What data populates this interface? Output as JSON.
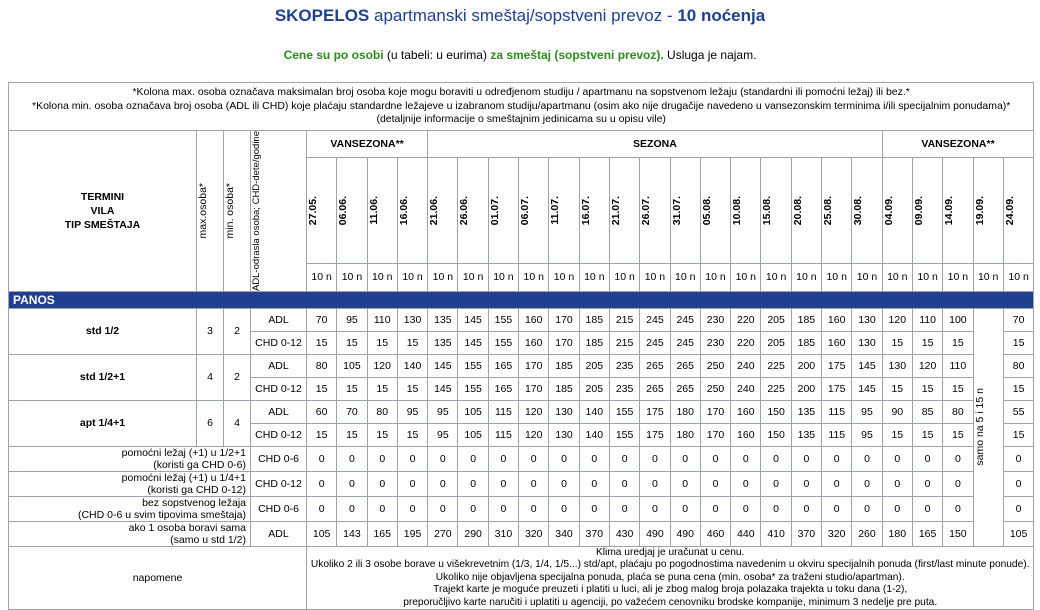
{
  "header": {
    "title_bold": "SKOPELOS",
    "title_mid": "apartmanski smeštaj/sopstveni prevoz -",
    "title_bold2": "10 noćenja"
  },
  "subtitle": {
    "part1": "Cene su po osobi",
    "part2": "(u tabeli: u eurima)",
    "part3": "za smeštaj (sopstveni prevoz).",
    "part4": "Usluga je najam."
  },
  "notes_top": [
    "*Kolona max. osoba označava maksimalan broj osoba koje mogu boraviti u određjenom studiju / apartmanu na sopstvenom ležaju (standardni ili pomoćni ležaj) ili bez.*",
    "*Kolona min. osoba označava broj osoba (ADL ili CHD) koje plaćaju standardne ležajeve u izabranom studiju/apartmanu (osim ako nije drugačije navedeno u vansezonskim terminima i/ili specijalnim ponudama)*",
    "(detaljnije informacije o smeštajnim jedinicama su u opisu vile)"
  ],
  "table": {
    "head_termini": "TERMINI",
    "head_vila": "VILA",
    "head_tip": "TIP SMEŠTAJA",
    "head_max": "max.osoba*",
    "head_min": "min. osoba*",
    "head_age": "ADL-odrasla osoba; CHD-dete/godine",
    "season1": "VANSEZONA**",
    "season2": "SEZONA",
    "season3": "VANSEZONA**",
    "dates": [
      "27.05.",
      "06.06.",
      "11.06.",
      "16.06.",
      "21.06.",
      "26.06.",
      "01.07.",
      "06.07.",
      "11.07.",
      "16.07.",
      "21.07.",
      "26.07.",
      "31.07.",
      "05.08.",
      "10.08.",
      "15.08.",
      "20.08.",
      "25.08.",
      "30.08.",
      "04.09.",
      "09.09.",
      "14.09.",
      "19.09.",
      "24.09."
    ],
    "nights": "10 n",
    "band": "PANOS",
    "vertical_note": "samo na 5 i 15 n",
    "rows": [
      {
        "name": "std 1/2",
        "max": "3",
        "min": "2",
        "lines": [
          {
            "type": "ADL",
            "v": [
              "70",
              "95",
              "110",
              "130",
              "135",
              "145",
              "155",
              "160",
              "170",
              "185",
              "215",
              "245",
              "245",
              "230",
              "220",
              "205",
              "185",
              "160",
              "130",
              "120",
              "110",
              "100",
              "70"
            ]
          },
          {
            "type": "CHD 0-12",
            "v": [
              "15",
              "15",
              "15",
              "15",
              "135",
              "145",
              "155",
              "160",
              "170",
              "185",
              "215",
              "245",
              "245",
              "230",
              "220",
              "205",
              "185",
              "160",
              "130",
              "15",
              "15",
              "15",
              "15"
            ]
          }
        ]
      },
      {
        "name": "std 1/2+1",
        "max": "4",
        "min": "2",
        "lines": [
          {
            "type": "ADL",
            "v": [
              "80",
              "105",
              "120",
              "140",
              "145",
              "155",
              "165",
              "170",
              "185",
              "205",
              "235",
              "265",
              "265",
              "250",
              "240",
              "225",
              "200",
              "175",
              "145",
              "130",
              "120",
              "110",
              "80"
            ]
          },
          {
            "type": "CHD 0-12",
            "v": [
              "15",
              "15",
              "15",
              "15",
              "145",
              "155",
              "165",
              "170",
              "185",
              "205",
              "235",
              "265",
              "265",
              "250",
              "240",
              "225",
              "200",
              "175",
              "145",
              "15",
              "15",
              "15",
              "15"
            ]
          }
        ]
      },
      {
        "name": "apt 1/4+1",
        "max": "6",
        "min": "4",
        "lines": [
          {
            "type": "ADL",
            "v": [
              "60",
              "70",
              "80",
              "95",
              "95",
              "105",
              "115",
              "120",
              "130",
              "140",
              "155",
              "175",
              "180",
              "170",
              "160",
              "150",
              "135",
              "115",
              "95",
              "90",
              "85",
              "80",
              "55"
            ]
          },
          {
            "type": "CHD 0-12",
            "v": [
              "15",
              "15",
              "15",
              "15",
              "95",
              "105",
              "115",
              "120",
              "130",
              "140",
              "155",
              "175",
              "180",
              "170",
              "160",
              "150",
              "135",
              "115",
              "95",
              "15",
              "15",
              "15",
              "15"
            ]
          }
        ]
      }
    ],
    "extra_rows": [
      {
        "l1": "pomoćni ležaj (+1) u 1/2+1",
        "l2": "(koristi ga CHD 0-6)",
        "type": "CHD 0-6",
        "v": [
          "0",
          "0",
          "0",
          "0",
          "0",
          "0",
          "0",
          "0",
          "0",
          "0",
          "0",
          "0",
          "0",
          "0",
          "0",
          "0",
          "0",
          "0",
          "0",
          "0",
          "0",
          "0",
          "0"
        ]
      },
      {
        "l1": "pomoćni ležaj (+1) u 1/4+1",
        "l2": "(koristi ga CHD 0-12)",
        "type": "CHD 0-12",
        "v": [
          "0",
          "0",
          "0",
          "0",
          "0",
          "0",
          "0",
          "0",
          "0",
          "0",
          "0",
          "0",
          "0",
          "0",
          "0",
          "0",
          "0",
          "0",
          "0",
          "0",
          "0",
          "0",
          "0"
        ]
      },
      {
        "l1": "bez sopstvenog ležaja",
        "l2": "(CHD 0-6 u svim tipovima smeštaja)",
        "type": "CHD 0-6",
        "v": [
          "0",
          "0",
          "0",
          "0",
          "0",
          "0",
          "0",
          "0",
          "0",
          "0",
          "0",
          "0",
          "0",
          "0",
          "0",
          "0",
          "0",
          "0",
          "0",
          "0",
          "0",
          "0",
          "0"
        ]
      },
      {
        "l1": "ako 1 osoba boravi sama",
        "l2": "(samo u std 1/2)",
        "type": "ADL",
        "v": [
          "105",
          "143",
          "165",
          "195",
          "270",
          "290",
          "310",
          "320",
          "340",
          "370",
          "430",
          "490",
          "490",
          "460",
          "440",
          "410",
          "370",
          "320",
          "260",
          "180",
          "165",
          "150",
          "105"
        ]
      }
    ],
    "napomene_label": "napomene",
    "napomene": [
      "Klima uredjaj je uračunat u cenu.",
      "Ukoliko 2 ili 3 osobe borave u višekrevetnim (1/3, 1/4, 1/5...) std/apt, plaćaju po pogodnostima navedenim u okviru specijalnih ponuda (first/last minute ponude).",
      "Ukoliko nije objavljena specijalna ponuda, plaća se puna cena (min. osoba* za traženi studio/apartman).",
      "Trajekt karte je moguće preuzeti i platiti u luci, ali je zbog malog broja polazaka trajekta u toku dana (1-2),",
      "preporučljivo karte naručiti i uplatiti u agenciji, po važećem cenovniku brodske kompanije, minimum 3 nedelje pre puta."
    ]
  }
}
